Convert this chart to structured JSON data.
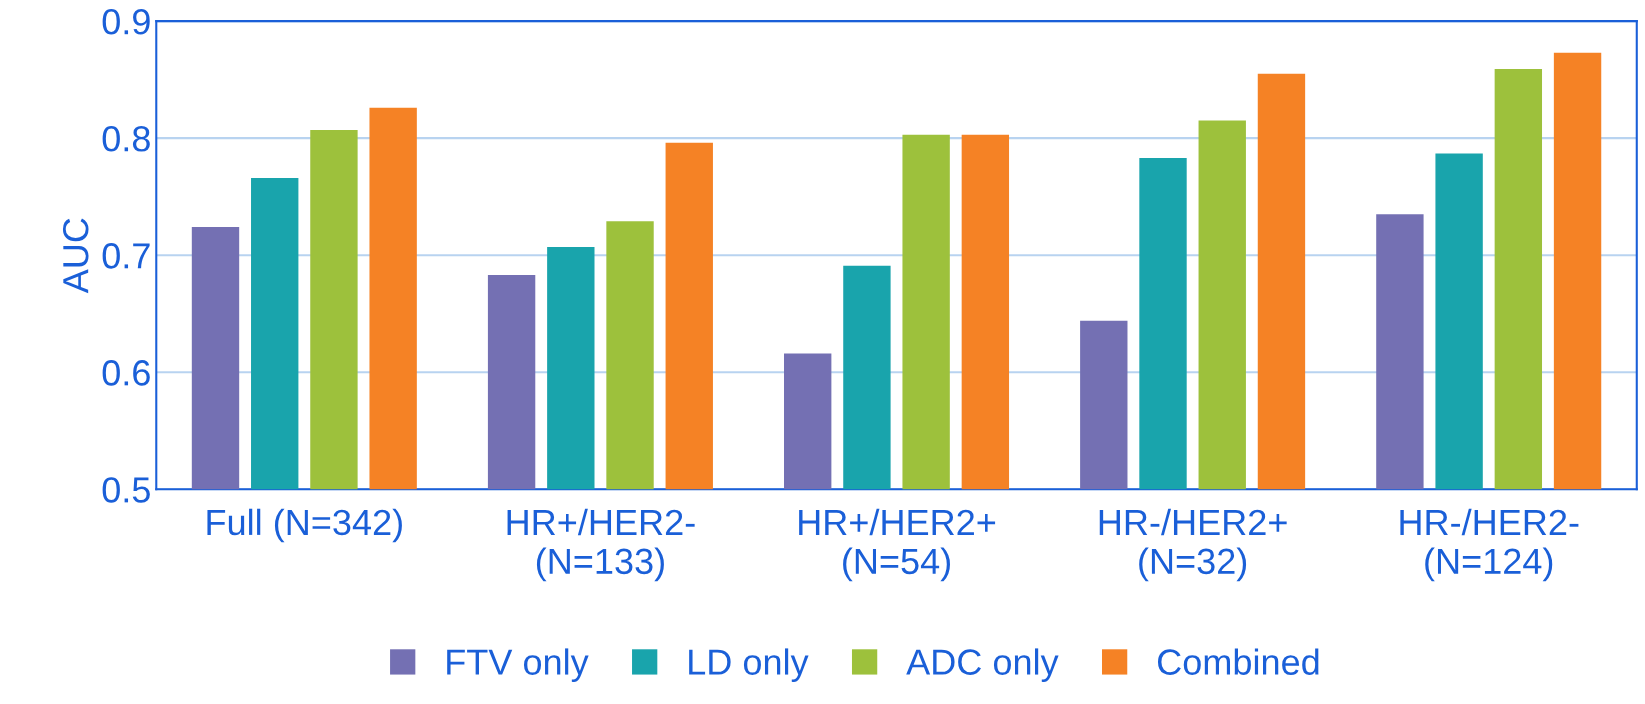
{
  "chart_data": {
    "type": "bar",
    "ylabel": "AUC",
    "categories": [
      "Full (N=342)",
      "HR+/HER2-\n(N=133)",
      "HR+/HER2+\n(N=54)",
      "HR-/HER2+\n(N=32)",
      "HR-/HER2-\n(N=124)"
    ],
    "series": [
      {
        "name": "FTV only",
        "color": "#7470b3",
        "values": [
          0.724,
          0.683,
          0.616,
          0.644,
          0.735
        ]
      },
      {
        "name": "LD only",
        "color": "#19a4ac",
        "values": [
          0.766,
          0.707,
          0.691,
          0.783,
          0.787
        ]
      },
      {
        "name": "ADC only",
        "color": "#9dc13c",
        "values": [
          0.807,
          0.729,
          0.803,
          0.815,
          0.859
        ]
      },
      {
        "name": "Combined",
        "color": "#f58225",
        "values": [
          0.826,
          0.796,
          0.803,
          0.855,
          0.873
        ]
      }
    ],
    "ylim": [
      0.5,
      0.9
    ],
    "yticks": [
      {
        "value": 0.5,
        "label": "0.5"
      },
      {
        "value": 0.6,
        "label": "0.6"
      },
      {
        "value": 0.7,
        "label": "0.7"
      },
      {
        "value": 0.8,
        "label": "0.8"
      },
      {
        "value": 0.9,
        "label": "0.9"
      }
    ],
    "grid": "y",
    "legend": "bottom"
  }
}
